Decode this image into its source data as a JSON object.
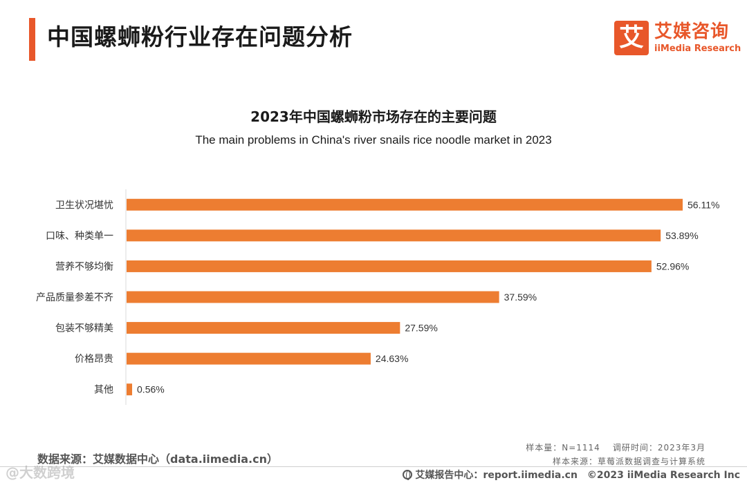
{
  "header": {
    "title": "中国螺蛳粉行业存在问题分析",
    "logo_mark": "艾",
    "logo_cn": "艾媒咨询",
    "logo_en": "iiMedia Research"
  },
  "colors": {
    "accent": "#e8572a",
    "bar": "#ed7d31",
    "axis": "#d9d9d9"
  },
  "chart_data": {
    "type": "bar",
    "orientation": "horizontal",
    "title": "2023年中国螺蛳粉市场存在的主要问题",
    "subtitle": "The main problems in China's river snails rice noodle market in 2023",
    "categories": [
      "卫生状况堪忧",
      "口味、种类单一",
      "营养不够均衡",
      "产品质量参差不齐",
      "包装不够精美",
      "价格昂贵",
      "其他"
    ],
    "values": [
      56.11,
      53.89,
      52.96,
      37.59,
      27.59,
      24.63,
      0.56
    ],
    "data_labels": [
      "56.11%",
      "53.89%",
      "52.96%",
      "37.59%",
      "27.59%",
      "24.63%",
      "0.56%"
    ],
    "unit": "%",
    "grid": false,
    "legend": "none"
  },
  "footer": {
    "source": "数据来源：艾媒数据中心（data.iimedia.cn）",
    "sample_size": "样本量：N=1114",
    "survey_time": "调研时间：2023年3月",
    "sample_source": "样本来源：草莓派数据调查与计算系统",
    "report_center": "艾媒报告中心：report.iimedia.cn",
    "copyright": "©2023 iiMedia Research Inc"
  },
  "watermark": {
    "text": "@大数跨境"
  }
}
